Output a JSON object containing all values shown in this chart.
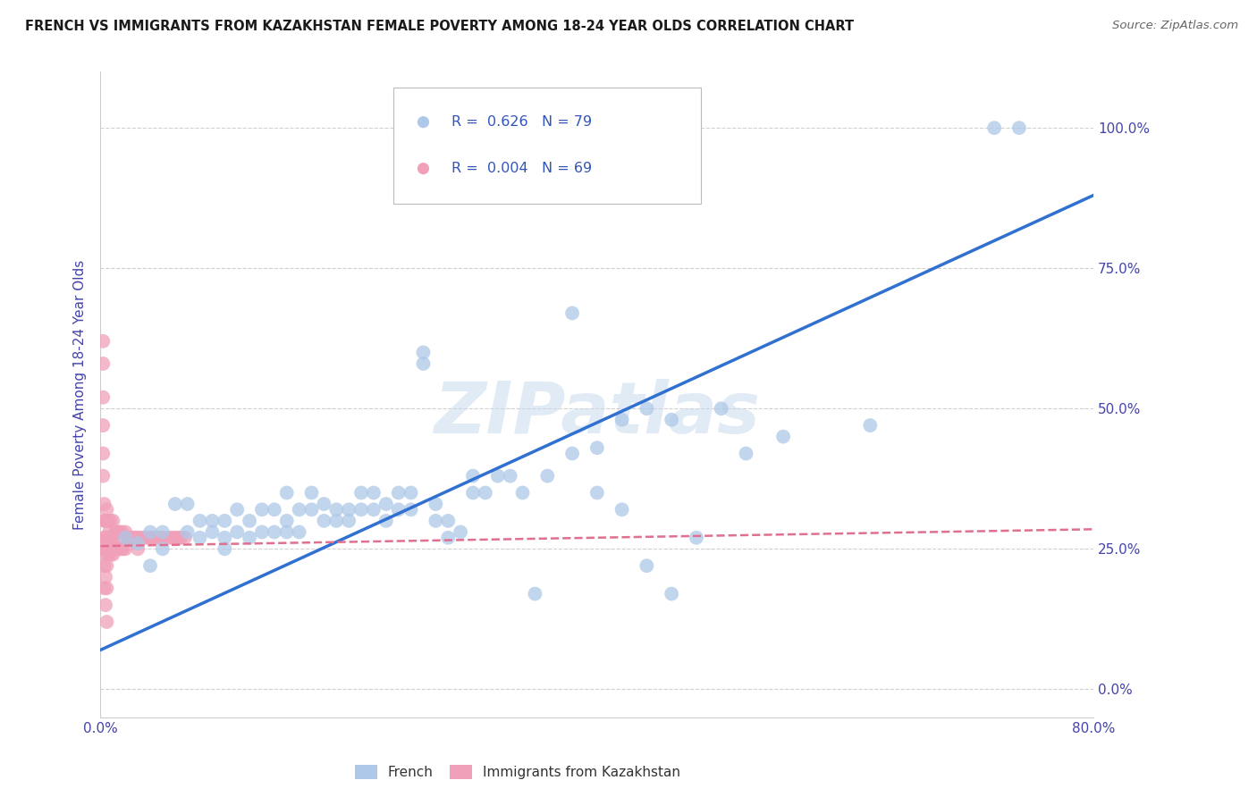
{
  "title": "FRENCH VS IMMIGRANTS FROM KAZAKHSTAN FEMALE POVERTY AMONG 18-24 YEAR OLDS CORRELATION CHART",
  "source": "Source: ZipAtlas.com",
  "ylabel": "Female Poverty Among 18-24 Year Olds",
  "xlim": [
    0.0,
    0.8
  ],
  "ylim": [
    -0.05,
    1.1
  ],
  "yticks": [
    0.0,
    0.25,
    0.5,
    0.75,
    1.0
  ],
  "ytick_labels": [
    "0.0%",
    "25.0%",
    "50.0%",
    "75.0%",
    "100.0%"
  ],
  "xticks": [
    0.0,
    0.1,
    0.2,
    0.3,
    0.4,
    0.5,
    0.6,
    0.7,
    0.8
  ],
  "xtick_labels": [
    "0.0%",
    "",
    "",
    "",
    "",
    "",
    "",
    "",
    "80.0%"
  ],
  "legend_french_R": "R =  0.626",
  "legend_french_N": "N = 79",
  "legend_kaz_R": "R =  0.004",
  "legend_kaz_N": "N = 69",
  "watermark": "ZIPatlas",
  "french_color": "#adc8e8",
  "kaz_color": "#f0a0b8",
  "french_line_color": "#3070d0",
  "kaz_line_color": "#e07090",
  "background_color": "#ffffff",
  "grid_color": "#d0d0d0",
  "axis_label_color": "#4444aa",
  "tick_color": "#4444aa",
  "french_scatter_x": [
    0.02,
    0.03,
    0.04,
    0.04,
    0.05,
    0.05,
    0.06,
    0.07,
    0.07,
    0.08,
    0.08,
    0.09,
    0.09,
    0.1,
    0.1,
    0.1,
    0.11,
    0.11,
    0.12,
    0.12,
    0.13,
    0.13,
    0.14,
    0.14,
    0.15,
    0.15,
    0.15,
    0.16,
    0.16,
    0.17,
    0.17,
    0.18,
    0.18,
    0.19,
    0.19,
    0.2,
    0.2,
    0.21,
    0.21,
    0.22,
    0.22,
    0.23,
    0.23,
    0.24,
    0.24,
    0.25,
    0.25,
    0.26,
    0.26,
    0.27,
    0.27,
    0.28,
    0.28,
    0.29,
    0.3,
    0.3,
    0.31,
    0.32,
    0.33,
    0.34,
    0.35,
    0.36,
    0.38,
    0.4,
    0.42,
    0.44,
    0.46,
    0.48,
    0.5,
    0.52,
    0.38,
    0.4,
    0.42,
    0.44,
    0.46,
    0.55,
    0.62,
    0.72,
    0.74
  ],
  "french_scatter_y": [
    0.27,
    0.26,
    0.22,
    0.28,
    0.25,
    0.28,
    0.33,
    0.28,
    0.33,
    0.27,
    0.3,
    0.28,
    0.3,
    0.25,
    0.27,
    0.3,
    0.32,
    0.28,
    0.3,
    0.27,
    0.28,
    0.32,
    0.32,
    0.28,
    0.35,
    0.3,
    0.28,
    0.32,
    0.28,
    0.35,
    0.32,
    0.33,
    0.3,
    0.32,
    0.3,
    0.32,
    0.3,
    0.35,
    0.32,
    0.32,
    0.35,
    0.33,
    0.3,
    0.35,
    0.32,
    0.35,
    0.32,
    0.58,
    0.6,
    0.33,
    0.3,
    0.3,
    0.27,
    0.28,
    0.38,
    0.35,
    0.35,
    0.38,
    0.38,
    0.35,
    0.17,
    0.38,
    0.42,
    0.35,
    0.48,
    0.5,
    0.48,
    0.27,
    0.5,
    0.42,
    0.67,
    0.43,
    0.32,
    0.22,
    0.17,
    0.45,
    0.47,
    1.0,
    1.0
  ],
  "kaz_scatter_x": [
    0.002,
    0.002,
    0.002,
    0.002,
    0.002,
    0.002,
    0.003,
    0.003,
    0.003,
    0.003,
    0.003,
    0.003,
    0.004,
    0.004,
    0.004,
    0.004,
    0.004,
    0.005,
    0.005,
    0.005,
    0.005,
    0.005,
    0.005,
    0.005,
    0.006,
    0.006,
    0.006,
    0.007,
    0.007,
    0.008,
    0.008,
    0.008,
    0.009,
    0.01,
    0.01,
    0.01,
    0.012,
    0.012,
    0.013,
    0.013,
    0.015,
    0.015,
    0.017,
    0.017,
    0.018,
    0.018,
    0.02,
    0.02,
    0.022,
    0.023,
    0.025,
    0.027,
    0.028,
    0.03,
    0.03,
    0.032,
    0.035,
    0.038,
    0.04,
    0.042,
    0.045,
    0.048,
    0.05,
    0.055,
    0.058,
    0.06,
    0.063,
    0.065,
    0.068
  ],
  "kaz_scatter_y": [
    0.62,
    0.58,
    0.52,
    0.47,
    0.42,
    0.38,
    0.33,
    0.3,
    0.27,
    0.25,
    0.22,
    0.18,
    0.3,
    0.27,
    0.24,
    0.2,
    0.15,
    0.32,
    0.3,
    0.27,
    0.25,
    0.22,
    0.18,
    0.12,
    0.3,
    0.27,
    0.24,
    0.28,
    0.25,
    0.3,
    0.27,
    0.24,
    0.27,
    0.3,
    0.27,
    0.24,
    0.28,
    0.25,
    0.28,
    0.25,
    0.28,
    0.25,
    0.28,
    0.25,
    0.27,
    0.25,
    0.28,
    0.25,
    0.27,
    0.27,
    0.27,
    0.27,
    0.27,
    0.27,
    0.25,
    0.27,
    0.27,
    0.27,
    0.27,
    0.27,
    0.27,
    0.27,
    0.27,
    0.27,
    0.27,
    0.27,
    0.27,
    0.27,
    0.27
  ],
  "french_trend_x": [
    0.0,
    0.8
  ],
  "french_trend_y": [
    0.07,
    0.88
  ],
  "kaz_trend_x": [
    0.0,
    0.8
  ],
  "kaz_trend_y": [
    0.255,
    0.285
  ]
}
